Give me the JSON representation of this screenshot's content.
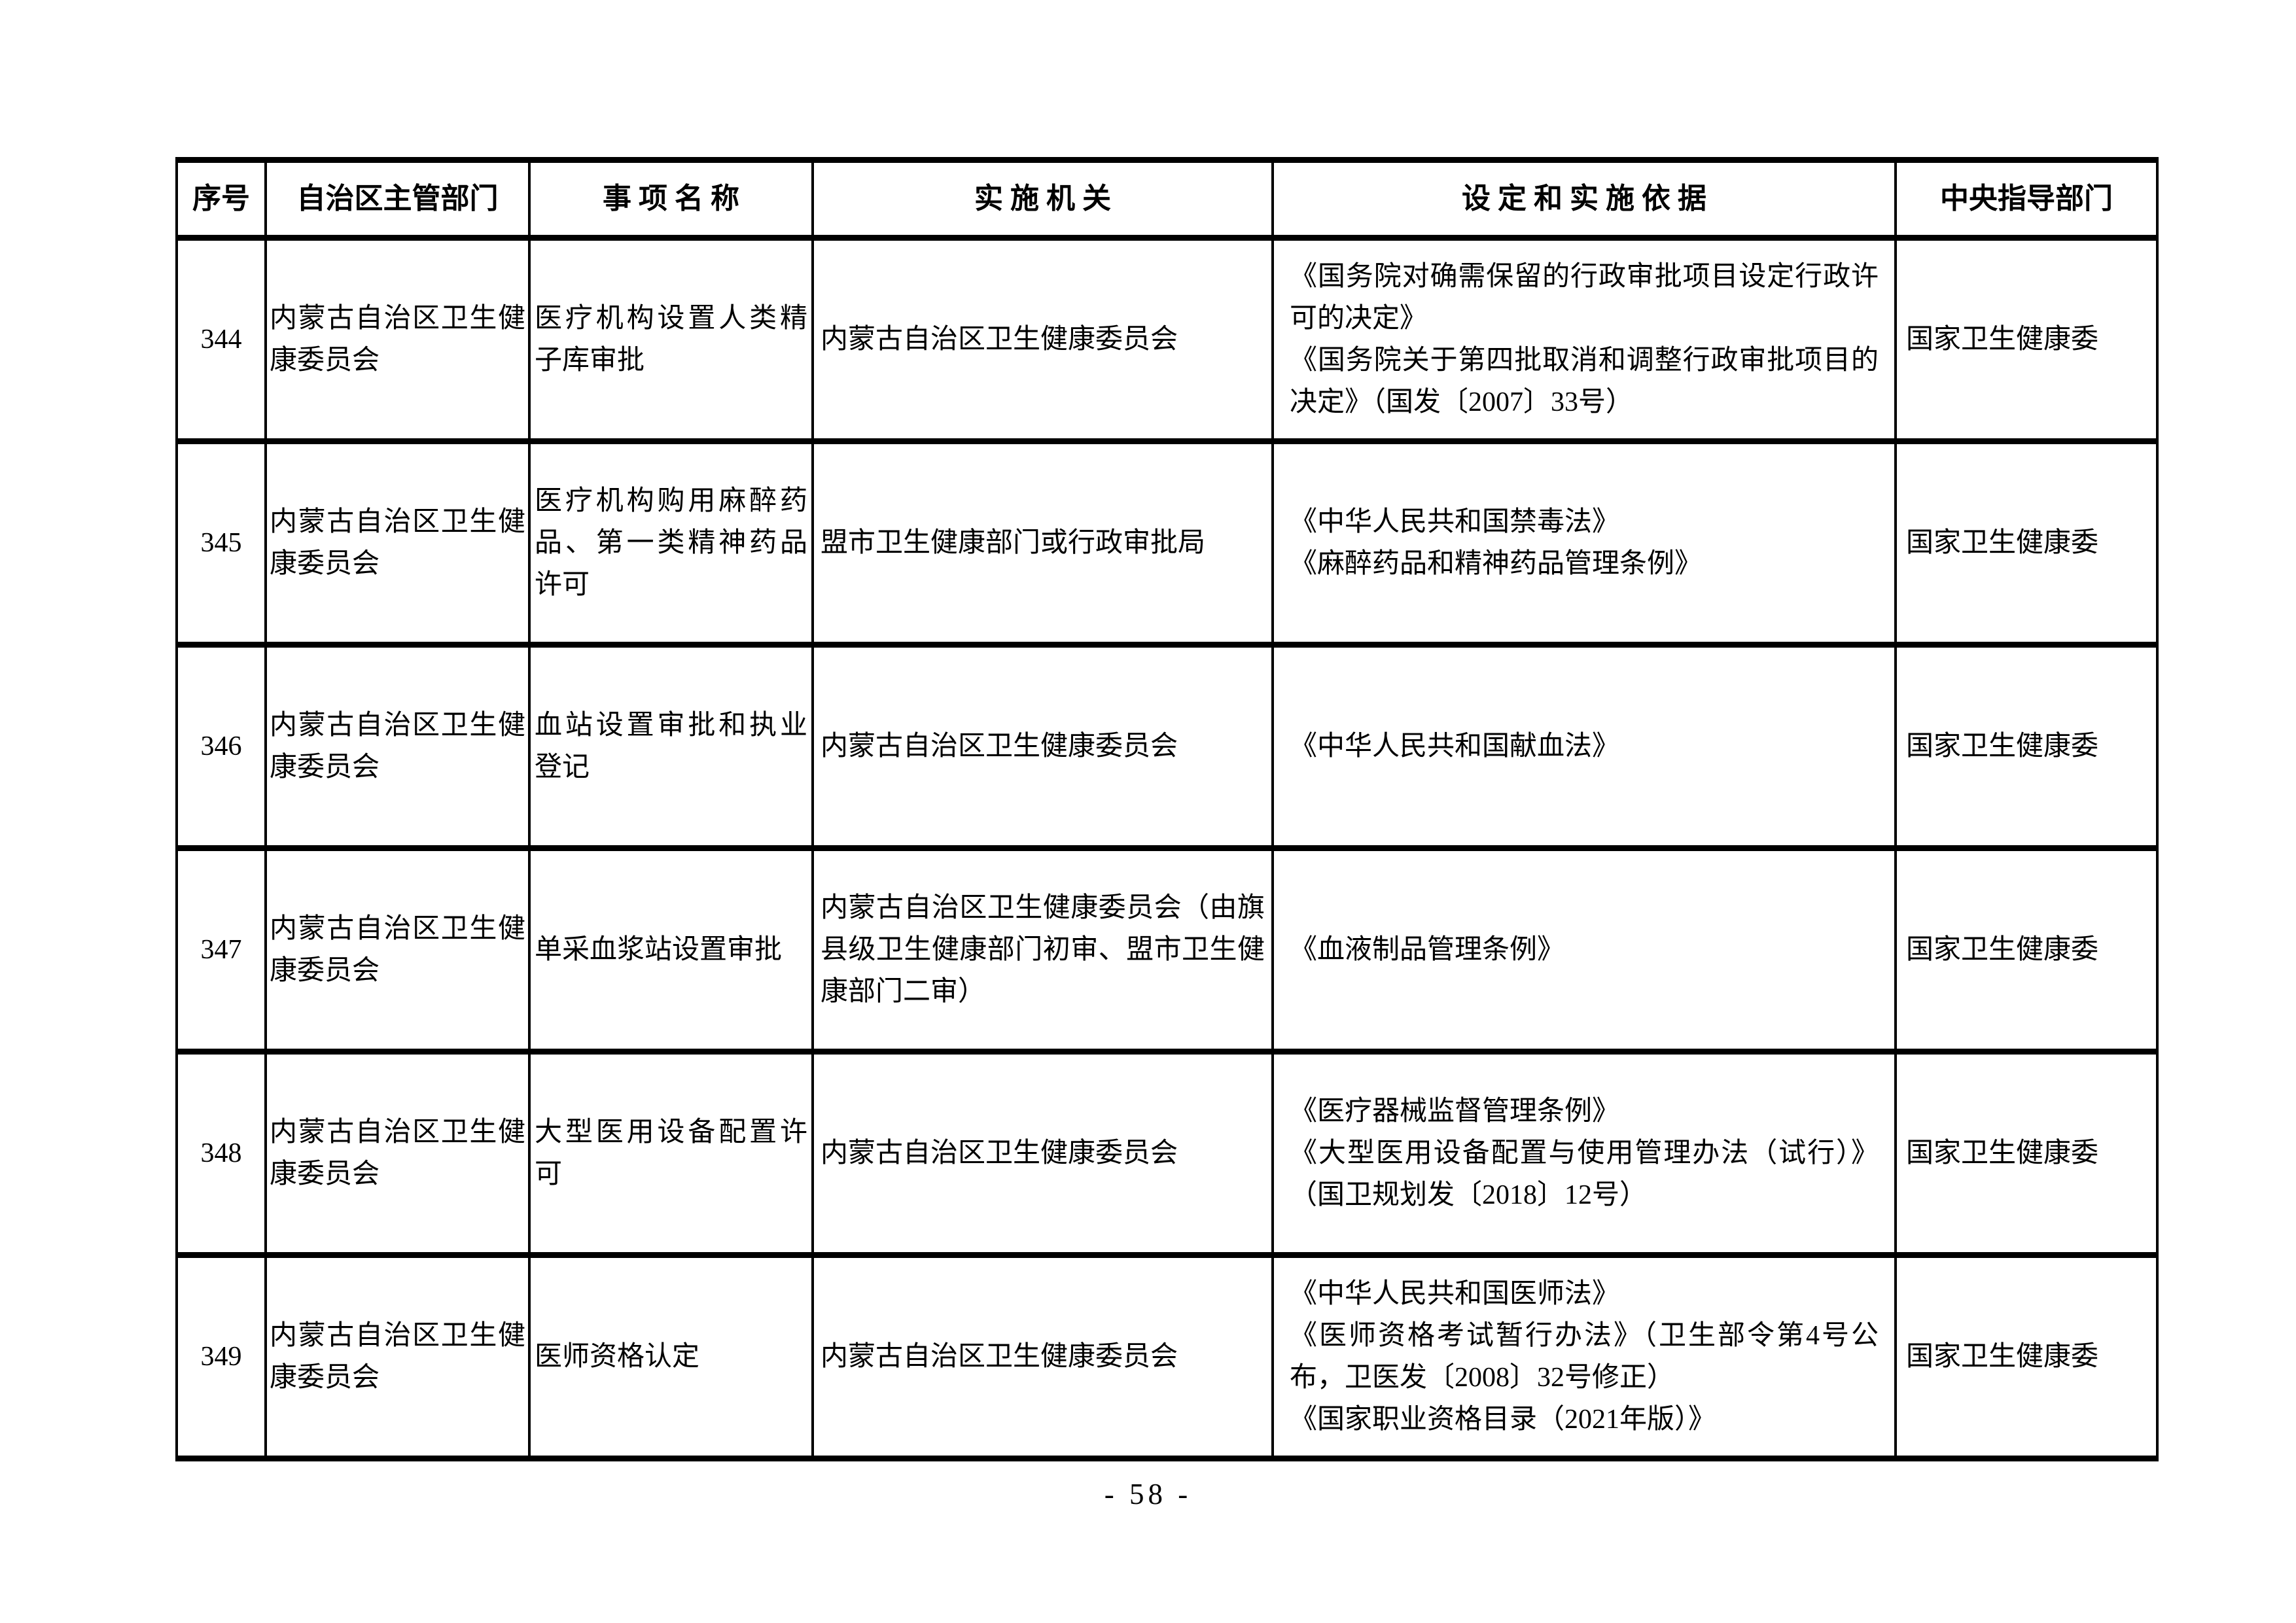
{
  "page": {
    "footer": "- 58 -"
  },
  "table": {
    "headers": {
      "no": "序号",
      "dept": "自治区主管部门",
      "item": "事 项 名 称",
      "agency": "实 施 机 关",
      "basis": "设 定 和 实 施 依 据",
      "central": "中央指导部门"
    },
    "rows": [
      {
        "no": "344",
        "dept": "内蒙古自治区卫生健康委员会",
        "item": "医疗机构设置人类精子库审批",
        "agency": "内蒙古自治区卫生健康委员会",
        "basis": [
          "《国务院对确需保留的行政审批项目设定行政许可的决定》",
          "《国务院关于第四批取消和调整行政审批项目的决定》（国发〔2007〕33号）"
        ],
        "central": "国家卫生健康委"
      },
      {
        "no": "345",
        "dept": "内蒙古自治区卫生健康委员会",
        "item": "医疗机构购用麻醉药品、第一类精神药品许可",
        "agency": "盟市卫生健康部门或行政审批局",
        "basis": [
          "《中华人民共和国禁毒法》",
          "《麻醉药品和精神药品管理条例》"
        ],
        "central": "国家卫生健康委"
      },
      {
        "no": "346",
        "dept": "内蒙古自治区卫生健康委员会",
        "item": "血站设置审批和执业登记",
        "agency": "内蒙古自治区卫生健康委员会",
        "basis": [
          "《中华人民共和国献血法》"
        ],
        "central": "国家卫生健康委"
      },
      {
        "no": "347",
        "dept": "内蒙古自治区卫生健康委员会",
        "item": "单采血浆站设置审批",
        "agency": "内蒙古自治区卫生健康委员会（由旗县级卫生健康部门初审、盟市卫生健康部门二审）",
        "basis": [
          "《血液制品管理条例》"
        ],
        "central": "国家卫生健康委"
      },
      {
        "no": "348",
        "dept": "内蒙古自治区卫生健康委员会",
        "item": "大型医用设备配置许可",
        "agency": "内蒙古自治区卫生健康委员会",
        "basis": [
          "《医疗器械监督管理条例》",
          "《大型医用设备配置与使用管理办法（试行）》（国卫规划发〔2018〕12号）"
        ],
        "central": "国家卫生健康委"
      },
      {
        "no": "349",
        "dept": "内蒙古自治区卫生健康委员会",
        "item": "医师资格认定",
        "agency": "内蒙古自治区卫生健康委员会",
        "basis": [
          "《中华人民共和国医师法》",
          "《医师资格考试暂行办法》（卫生部令第4号公布，卫医发〔2008〕32号修正）",
          "《国家职业资格目录（2021年版）》"
        ],
        "central": "国家卫生健康委"
      }
    ]
  }
}
